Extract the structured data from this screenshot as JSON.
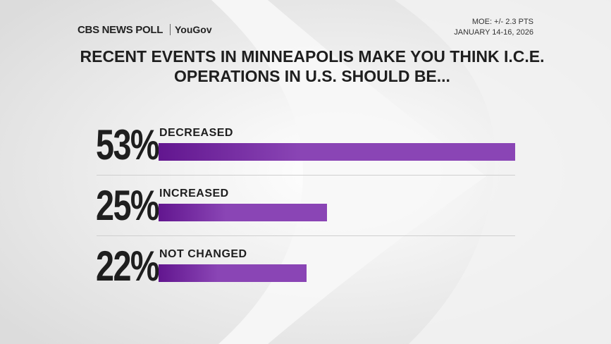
{
  "header": {
    "brand": "CBS NEWS POLL",
    "partner": "YouGov",
    "moe": "MOE: +/- 2.3 PTS",
    "dates": "JANUARY 14-16, 2026"
  },
  "chart_data": {
    "type": "bar",
    "orientation": "horizontal",
    "title": "RECENT EVENTS IN MINNEAPOLIS MAKE YOU THINK I.C.E. OPERATIONS IN U.S. SHOULD BE...",
    "categories": [
      "DECREASED",
      "INCREASED",
      "NOT CHANGED"
    ],
    "values": [
      53,
      25,
      22
    ],
    "value_labels": [
      "53%",
      "25%",
      "22%"
    ],
    "color": "#8a45b5"
  }
}
